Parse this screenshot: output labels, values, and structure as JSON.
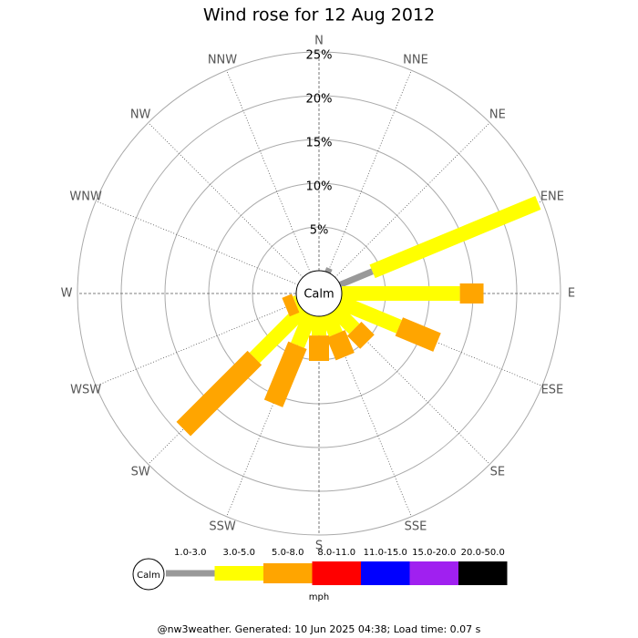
{
  "chart_data": {
    "type": "windrose",
    "title": "Wind rose for 12 Aug 2012",
    "categories": [
      "N",
      "NNE",
      "NE",
      "ENE",
      "E",
      "ESE",
      "SE",
      "SSE",
      "S",
      "SSW",
      "SW",
      "WSW",
      "W",
      "WNW",
      "NW",
      "NNW"
    ],
    "center_label": "Calm",
    "rlim": [
      0,
      25
    ],
    "rticks": [
      {
        "value": 5,
        "label": "5%"
      },
      {
        "value": 10,
        "label": "10%"
      },
      {
        "value": 15,
        "label": "15%"
      },
      {
        "value": 20,
        "label": "20%"
      },
      {
        "value": 25,
        "label": "25%"
      }
    ],
    "unit": "mph",
    "series": [
      {
        "name": "1.0-3.0",
        "color": "#999999",
        "values": [
          0,
          0.5,
          0,
          4,
          0,
          0,
          0,
          0,
          0,
          0,
          0,
          0,
          0,
          0,
          0,
          0
        ]
      },
      {
        "name": "3.0-5.0",
        "color": "#ffff00",
        "values": [
          0,
          0,
          0,
          20.5,
          13.5,
          7.3,
          3.1,
          2.4,
          2.2,
          3.8,
          7.8,
          0.3,
          0,
          0,
          0,
          0
        ]
      },
      {
        "name": "5.0-8.0",
        "color": "#ffa500",
        "values": [
          0,
          0,
          0,
          0,
          2.7,
          4.7,
          2.1,
          2.8,
          2.9,
          7.2,
          11.5,
          1.2,
          0,
          0,
          0,
          0
        ]
      },
      {
        "name": "8.0-11.0",
        "color": "#ff0000",
        "values": [
          0,
          0,
          0,
          0,
          0,
          0,
          0,
          0,
          0,
          0,
          0,
          0,
          0,
          0,
          0,
          0
        ]
      },
      {
        "name": "11.0-15.0",
        "color": "#0000ff",
        "values": [
          0,
          0,
          0,
          0,
          0,
          0,
          0,
          0,
          0,
          0,
          0,
          0,
          0,
          0,
          0,
          0
        ]
      },
      {
        "name": "15.0-20.0",
        "color": "#a020f0",
        "values": [
          0,
          0,
          0,
          0,
          0,
          0,
          0,
          0,
          0,
          0,
          0,
          0,
          0,
          0,
          0,
          0
        ]
      },
      {
        "name": "20.0-50.0",
        "color": "#000000",
        "values": [
          0,
          0,
          0,
          0,
          0,
          0,
          0,
          0,
          0,
          0,
          0,
          0,
          0,
          0,
          0,
          0
        ]
      }
    ],
    "footer": "@nw3weather. Generated: 10 Jun 2025 04:38; Load time: 0.07 s"
  }
}
